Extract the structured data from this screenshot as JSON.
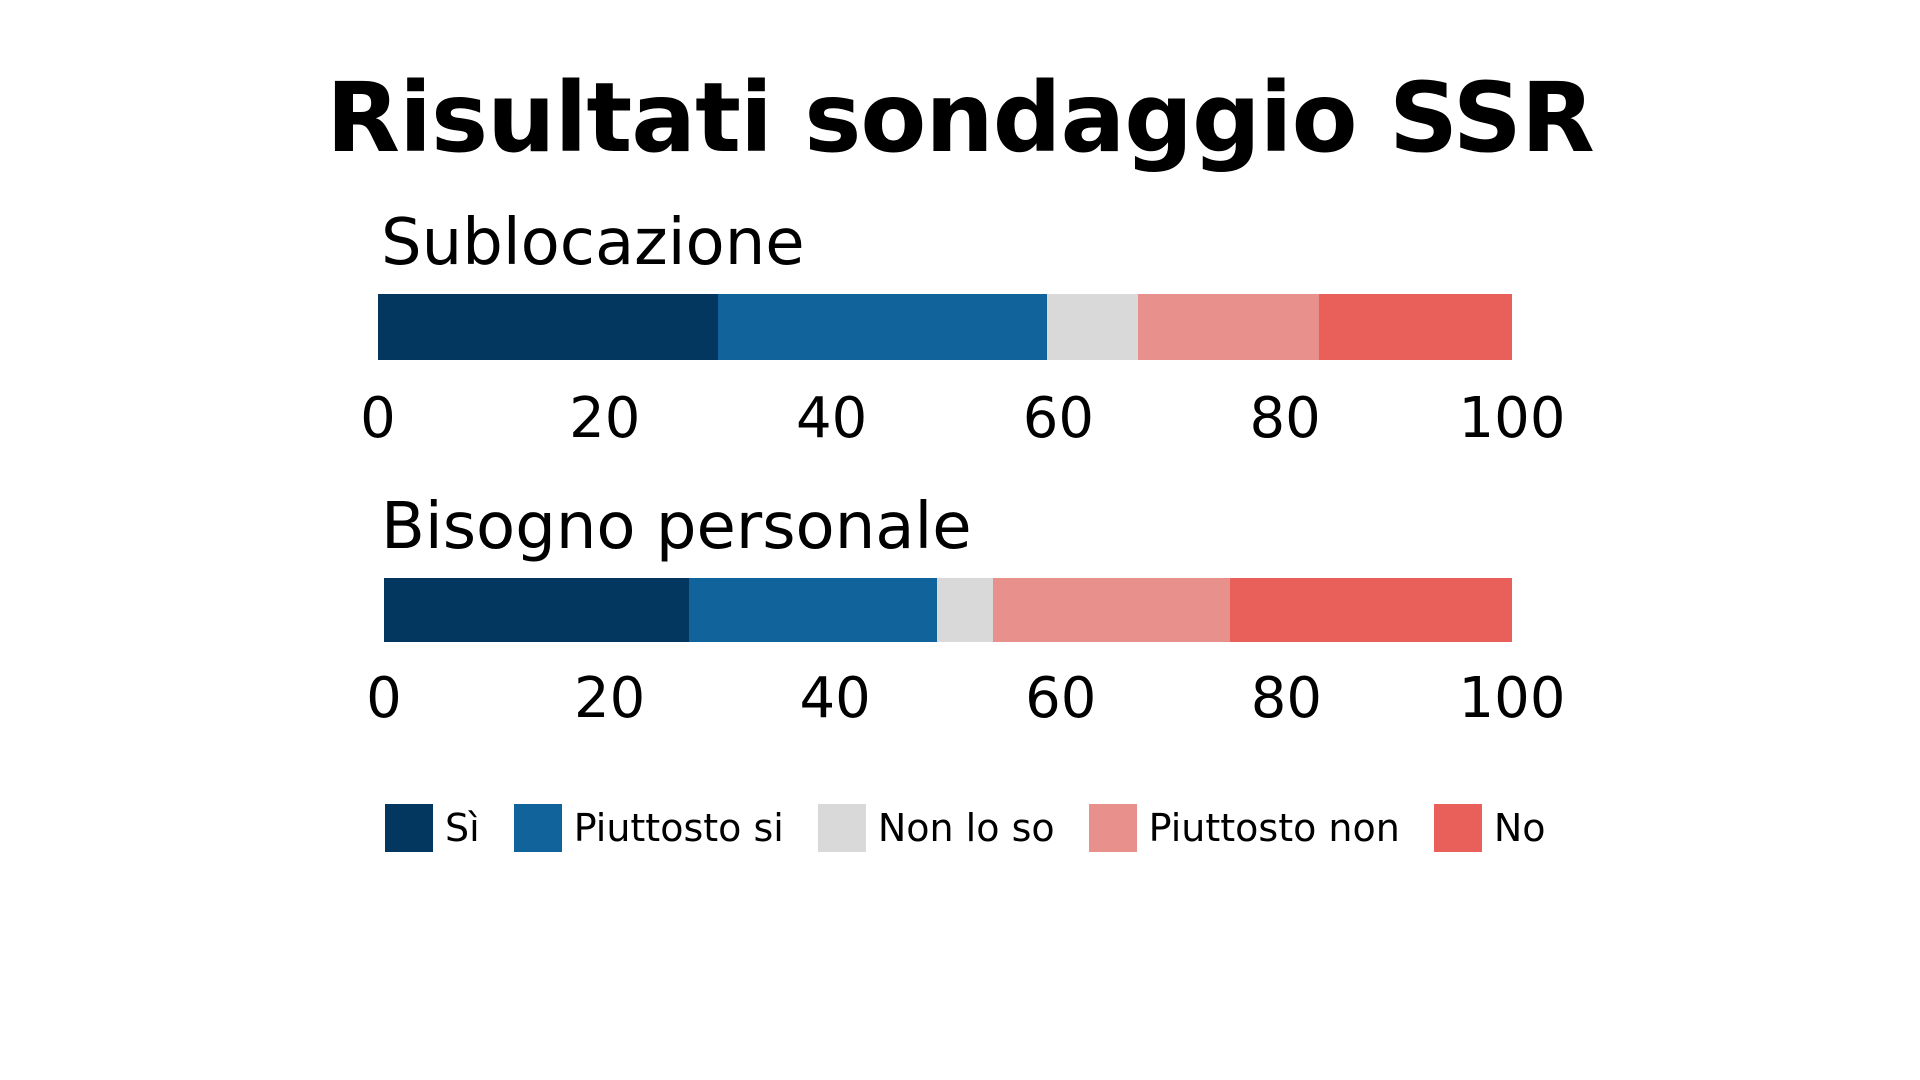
{
  "title": "Risultati sondaggio SSR",
  "legend": {
    "items": [
      {
        "label": "Sì",
        "color": "#03375f"
      },
      {
        "label": "Piuttosto si",
        "color": "#11639c"
      },
      {
        "label": "Non lo so",
        "color": "#d9d9d9"
      },
      {
        "label": "Piuttosto non",
        "color": "#e8908b"
      },
      {
        "label": "No",
        "color": "#e95f5a"
      }
    ]
  },
  "chart_data": [
    {
      "type": "bar",
      "orientation": "horizontal-stacked",
      "title": "Sublocazione",
      "xlim": [
        0,
        100
      ],
      "ticks": [
        "0",
        "20",
        "40",
        "60",
        "80",
        "100"
      ],
      "grid": false,
      "legend_position": "bottom",
      "series": [
        {
          "name": "Sì",
          "value": 30
        },
        {
          "name": "Piuttosto si",
          "value": 29
        },
        {
          "name": "Non lo so",
          "value": 8
        },
        {
          "name": "Piuttosto non",
          "value": 16
        },
        {
          "name": "No",
          "value": 17
        }
      ]
    },
    {
      "type": "bar",
      "orientation": "horizontal-stacked",
      "title": "Bisogno personale",
      "xlim": [
        0,
        100
      ],
      "ticks": [
        "0",
        "20",
        "40",
        "60",
        "80",
        "100"
      ],
      "grid": false,
      "legend_position": "bottom",
      "series": [
        {
          "name": "Sì",
          "value": 27
        },
        {
          "name": "Piuttosto si",
          "value": 22
        },
        {
          "name": "Non lo so",
          "value": 5
        },
        {
          "name": "Piuttosto non",
          "value": 21
        },
        {
          "name": "No",
          "value": 25
        }
      ]
    }
  ]
}
